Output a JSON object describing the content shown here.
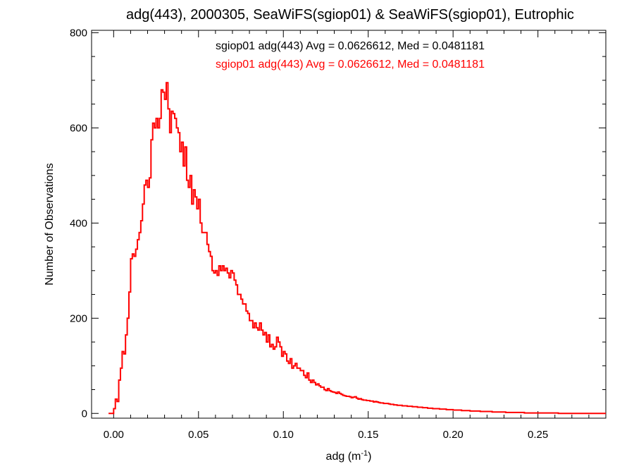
{
  "chart_data": {
    "type": "histogram",
    "title": "adg(443), 2000305, SeaWiFS(sgiop01) & SeaWiFS(sgiop01), Eutrophic",
    "xlabel_base": "adg (m",
    "xlabel_sup": "-1",
    "xlabel_tail": ")",
    "ylabel": "Number of Observations",
    "xlim": [
      -0.013,
      0.29
    ],
    "ylim": [
      -10,
      805
    ],
    "xticks": [
      0.0,
      0.05,
      0.1,
      0.15,
      0.2,
      0.25
    ],
    "xtick_labels": [
      "0.00",
      "0.05",
      "0.10",
      "0.15",
      "0.20",
      "0.25"
    ],
    "yticks": [
      0,
      200,
      400,
      600,
      800
    ],
    "ytick_labels": [
      "0",
      "200",
      "400",
      "600",
      "800"
    ],
    "grid": false,
    "annotations": [
      {
        "text": "sgiop01 adg(443) Avg = 0.0626612, Med = 0.0481181",
        "color": "#000000"
      },
      {
        "text": "sgiop01 adg(443) Avg = 0.0626612, Med = 0.0481181",
        "color": "#ff0000"
      }
    ],
    "series": [
      {
        "color": "#ff0000",
        "x_start": -0.003,
        "bin_width": 0.001,
        "values": [
          0,
          0,
          0,
          10,
          30,
          25,
          70,
          95,
          130,
          125,
          165,
          200,
          255,
          325,
          335,
          330,
          345,
          365,
          380,
          405,
          440,
          480,
          490,
          475,
          495,
          575,
          610,
          600,
          620,
          600,
          620,
          680,
          675,
          660,
          695,
          640,
          590,
          635,
          630,
          620,
          600,
          590,
          550,
          570,
          520,
          560,
          490,
          475,
          500,
          440,
          470,
          455,
          430,
          450,
          400,
          380,
          380,
          380,
          355,
          340,
          330,
          300,
          295,
          300,
          290,
          310,
          300,
          310,
          300,
          305,
          295,
          285,
          300,
          295,
          280,
          270,
          250,
          250,
          240,
          230,
          230,
          215,
          210,
          195,
          195,
          180,
          190,
          180,
          175,
          190,
          175,
          165,
          170,
          150,
          165,
          140,
          145,
          135,
          140,
          160,
          150,
          140,
          120,
          130,
          125,
          110,
          105,
          115,
          95,
          100,
          105,
          95,
          95,
          90,
          90,
          80,
          75,
          85,
          70,
          65,
          70,
          65,
          60,
          62,
          58,
          55,
          55,
          50,
          48,
          52,
          48,
          46,
          45,
          44,
          42,
          45,
          42,
          40,
          38,
          37,
          36,
          36,
          35,
          33,
          34,
          35,
          32,
          30,
          31,
          29,
          28,
          28,
          27,
          27,
          26,
          26,
          24,
          25,
          24,
          23,
          22,
          22,
          21,
          21,
          21,
          20,
          19,
          19,
          18,
          18,
          17,
          17,
          17,
          16,
          16,
          16,
          15,
          15,
          15,
          14,
          14,
          14,
          13,
          13,
          13,
          12,
          12,
          12,
          11,
          11,
          11,
          10,
          10,
          10,
          10,
          9,
          9,
          9,
          9,
          8,
          8,
          8,
          8,
          7,
          7,
          7,
          7,
          7,
          6,
          6,
          6,
          6,
          6,
          5,
          5,
          5,
          5,
          5,
          5,
          4,
          4,
          4,
          4,
          4,
          4,
          4,
          3,
          3,
          3,
          3,
          3,
          3,
          3,
          3,
          2,
          2,
          2,
          2,
          2,
          2,
          2,
          2,
          2,
          2,
          2,
          1,
          1,
          1,
          1,
          1,
          1,
          1,
          1,
          1,
          1,
          1,
          1,
          1,
          1,
          1,
          1,
          1,
          1,
          1,
          1,
          0,
          0,
          0,
          0,
          0,
          0,
          0,
          0,
          0,
          0,
          0,
          0,
          0,
          0,
          0,
          0,
          0,
          0,
          0,
          0,
          0,
          0,
          0,
          0,
          0,
          0,
          0,
          0
        ]
      }
    ]
  }
}
